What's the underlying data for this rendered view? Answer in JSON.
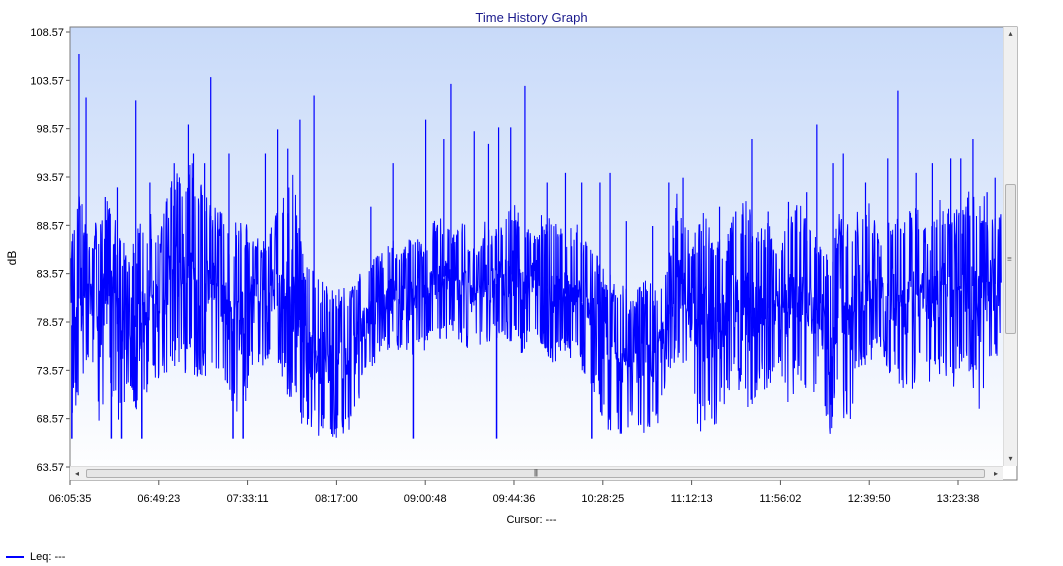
{
  "chart_data": {
    "type": "line",
    "title": "Time History Graph",
    "xlabel": "",
    "ylabel": "dB",
    "ylim": [
      63.57,
      108.57
    ],
    "y_ticks": [
      "108.57",
      "103.57",
      "98.57",
      "93.57",
      "88.57",
      "83.57",
      "78.57",
      "73.57",
      "68.57",
      "63.57"
    ],
    "x_range": [
      "06:05:35",
      "13:45:00"
    ],
    "x_ticks": [
      "06:05:35",
      "06:49:23",
      "07:33:11",
      "08:17:00",
      "09:00:48",
      "09:44:36",
      "10:28:25",
      "11:12:13",
      "11:56:02",
      "12:39:50",
      "13:23:38"
    ],
    "grid": false,
    "legend": "bottom-left",
    "series": [
      {
        "name": "Leq: ---",
        "color": "#0000ff",
        "x": [
          "06:05:35",
          "06:10:00",
          "06:15:00",
          "06:20:00",
          "06:25:00",
          "06:30:00",
          "06:35:00",
          "06:40:00",
          "06:45:00",
          "06:50:00",
          "06:55:00",
          "07:00:00",
          "07:05:00",
          "07:10:00",
          "07:15:00",
          "07:20:00",
          "07:25:00",
          "07:30:00",
          "07:35:00",
          "07:40:00",
          "07:45:00",
          "07:50:00",
          "07:55:00",
          "08:00:00",
          "08:05:00",
          "08:10:00",
          "08:15:00",
          "08:20:00",
          "08:25:00",
          "08:30:00",
          "08:35:00",
          "08:40:00",
          "08:45:00",
          "08:50:00",
          "08:55:00",
          "09:00:00",
          "09:05:00",
          "09:10:00",
          "09:15:00",
          "09:20:00",
          "09:25:00",
          "09:30:00",
          "09:35:00",
          "09:40:00",
          "09:45:00",
          "09:50:00",
          "09:55:00",
          "10:00:00",
          "10:05:00",
          "10:10:00",
          "10:15:00",
          "10:20:00",
          "10:25:00",
          "10:30:00",
          "10:35:00",
          "10:40:00",
          "10:45:00",
          "10:50:00",
          "10:55:00",
          "11:00:00",
          "11:05:00",
          "11:10:00",
          "11:15:00",
          "11:20:00",
          "11:25:00",
          "11:30:00",
          "11:35:00",
          "11:40:00",
          "11:45:00",
          "11:50:00",
          "11:55:00",
          "12:00:00",
          "12:05:00",
          "12:10:00",
          "12:15:00",
          "12:20:00",
          "12:25:00",
          "12:30:00",
          "12:35:00",
          "12:40:00",
          "12:45:00",
          "12:50:00",
          "12:55:00",
          "13:00:00",
          "13:05:00",
          "13:10:00",
          "13:15:00",
          "13:20:00",
          "13:25:00",
          "13:30:00",
          "13:35:00",
          "13:40:00",
          "13:45:00"
        ],
        "min": [
          68.0,
          70.0,
          74.0,
          67.0,
          72.0,
          67.0,
          71.0,
          66.5,
          73.0,
          72.0,
          74.0,
          73.0,
          73.5,
          72.0,
          74.0,
          73.0,
          70.0,
          67.0,
          74.0,
          73.0,
          74.5,
          73.0,
          69.0,
          68.0,
          67.0,
          66.5,
          66.5,
          66.5,
          66.5,
          73.0,
          74.0,
          75.0,
          76.0,
          75.0,
          74.0,
          75.5,
          76.0,
          76.5,
          77.0,
          76.0,
          75.5,
          76.0,
          76.5,
          77.0,
          76.0,
          75.0,
          77.0,
          75.0,
          74.0,
          75.0,
          74.0,
          73.0,
          71.0,
          67.0,
          67.0,
          67.0,
          67.0,
          66.8,
          66.8,
          73.0,
          74.0,
          73.0,
          66.5,
          66.5,
          67.0,
          71.0,
          72.0,
          66.5,
          72.0,
          71.0,
          73.0,
          70.0,
          72.0,
          69.0,
          73.0,
          66.5,
          70.0,
          66.5,
          74.0,
          74.0,
          76.0,
          73.0,
          72.0,
          70.0,
          74.0,
          72.0,
          73.0,
          71.0,
          74.0,
          73.0,
          67.0,
          74.0,
          75.0
        ],
        "max": [
          87.0,
          92.0,
          88.0,
          90.0,
          91.5,
          88.0,
          86.0,
          89.0,
          90.0,
          88.0,
          93.0,
          94.5,
          95.5,
          94.0,
          91.0,
          90.0,
          88.0,
          90.0,
          88.0,
          87.0,
          89.0,
          91.0,
          95.0,
          86.0,
          84.0,
          83.0,
          82.0,
          82.0,
          83.0,
          84.0,
          85.0,
          86.0,
          87.0,
          86.0,
          88.0,
          87.0,
          89.0,
          90.0,
          88.0,
          89.0,
          86.0,
          89.0,
          88.0,
          90.0,
          91.0,
          88.0,
          89.0,
          90.0,
          89.0,
          88.0,
          89.0,
          87.0,
          86.0,
          84.0,
          83.0,
          82.0,
          82.0,
          83.0,
          82.0,
          84.0,
          92.0,
          88.0,
          89.0,
          91.0,
          87.0,
          88.0,
          91.0,
          92.0,
          88.0,
          89.0,
          86.0,
          90.0,
          91.0,
          89.0,
          87.0,
          86.0,
          90.0,
          90.0,
          90.0,
          92.0,
          87.0,
          90.0,
          89.0,
          91.0,
          90.0,
          88.0,
          92.0,
          91.0,
          90.0,
          93.0,
          92.0,
          91.0,
          90.0
        ],
        "peaks": [
          {
            "x": "06:10:00",
            "y": 106.3
          },
          {
            "x": "06:13:30",
            "y": 101.8
          },
          {
            "x": "06:23:00",
            "y": 91.5
          },
          {
            "x": "06:29:00",
            "y": 92.5
          },
          {
            "x": "06:38:00",
            "y": 101.5
          },
          {
            "x": "06:45:00",
            "y": 93.0
          },
          {
            "x": "06:57:00",
            "y": 95.0
          },
          {
            "x": "07:04:00",
            "y": 99.0
          },
          {
            "x": "07:06:30",
            "y": 96.0
          },
          {
            "x": "07:12:00",
            "y": 95.0
          },
          {
            "x": "07:15:00",
            "y": 103.9
          },
          {
            "x": "07:24:00",
            "y": 96.0
          },
          {
            "x": "07:42:00",
            "y": 96.0
          },
          {
            "x": "07:48:00",
            "y": 98.5
          },
          {
            "x": "07:53:00",
            "y": 96.5
          },
          {
            "x": "07:59:00",
            "y": 99.5
          },
          {
            "x": "08:06:00",
            "y": 102.0
          },
          {
            "x": "08:34:00",
            "y": 90.5
          },
          {
            "x": "08:45:00",
            "y": 95.0
          },
          {
            "x": "09:01:00",
            "y": 99.5
          },
          {
            "x": "09:10:00",
            "y": 97.5
          },
          {
            "x": "09:13:30",
            "y": 103.2
          },
          {
            "x": "09:25:00",
            "y": 98.3
          },
          {
            "x": "09:32:00",
            "y": 97.0
          },
          {
            "x": "09:37:00",
            "y": 98.7
          },
          {
            "x": "09:43:00",
            "y": 98.7
          },
          {
            "x": "09:50:00",
            "y": 103.0
          },
          {
            "x": "10:01:00",
            "y": 93.0
          },
          {
            "x": "10:10:00",
            "y": 94.0
          },
          {
            "x": "10:18:00",
            "y": 93.0
          },
          {
            "x": "10:27:00",
            "y": 93.0
          },
          {
            "x": "10:32:00",
            "y": 94.0
          },
          {
            "x": "10:40:00",
            "y": 89.0
          },
          {
            "x": "10:53:00",
            "y": 88.5
          },
          {
            "x": "11:01:00",
            "y": 93.0
          },
          {
            "x": "11:08:00",
            "y": 93.5
          },
          {
            "x": "11:26:00",
            "y": 90.5
          },
          {
            "x": "11:34:00",
            "y": 90.0
          },
          {
            "x": "11:42:00",
            "y": 97.5
          },
          {
            "x": "11:50:00",
            "y": 90.0
          },
          {
            "x": "12:00:00",
            "y": 91.0
          },
          {
            "x": "12:09:00",
            "y": 92.0
          },
          {
            "x": "12:14:00",
            "y": 99.0
          },
          {
            "x": "12:22:00",
            "y": 95.0
          },
          {
            "x": "12:27:00",
            "y": 96.0
          },
          {
            "x": "12:38:00",
            "y": 93.0
          },
          {
            "x": "12:49:00",
            "y": 95.5
          },
          {
            "x": "12:54:00",
            "y": 102.5
          },
          {
            "x": "13:03:00",
            "y": 94.0
          },
          {
            "x": "13:11:00",
            "y": 95.0
          },
          {
            "x": "13:20:00",
            "y": 95.5
          },
          {
            "x": "13:25:00",
            "y": 95.5
          },
          {
            "x": "13:31:00",
            "y": 97.5
          },
          {
            "x": "13:38:00",
            "y": 92.0
          },
          {
            "x": "13:42:00",
            "y": 93.5
          }
        ],
        "dips": [
          {
            "x": "06:06:30",
            "y": 66.5
          },
          {
            "x": "06:26:00",
            "y": 66.5
          },
          {
            "x": "06:31:00",
            "y": 66.5
          },
          {
            "x": "06:41:00",
            "y": 66.5
          },
          {
            "x": "07:26:00",
            "y": 66.5
          },
          {
            "x": "07:31:00",
            "y": 66.5
          },
          {
            "x": "08:55:00",
            "y": 66.5
          },
          {
            "x": "09:36:00",
            "y": 66.5
          },
          {
            "x": "10:23:00",
            "y": 66.5
          }
        ]
      }
    ]
  },
  "cursor_readout": "Cursor: ---",
  "legend_label": "Leq: ---",
  "icons": {
    "scroll_left": "◂",
    "scroll_right": "▸",
    "scroll_up": "▴",
    "scroll_down": "▾",
    "grip_h": "|||",
    "grip_v": "≡"
  }
}
